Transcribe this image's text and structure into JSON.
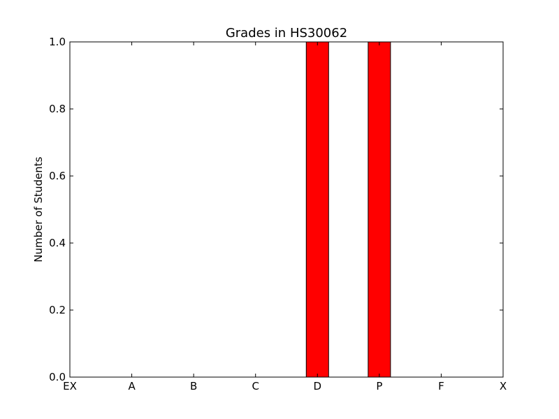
{
  "chart_data": {
    "type": "bar",
    "title": "Grades in HS30062",
    "xlabel": "",
    "ylabel": "Number of Students",
    "categories": [
      "EX",
      "A",
      "B",
      "C",
      "D",
      "P",
      "F",
      "X"
    ],
    "values": [
      0,
      0,
      0,
      0,
      1,
      1,
      0,
      0
    ],
    "ylim": [
      0,
      1.0
    ],
    "yticks": [
      0.0,
      0.2,
      0.4,
      0.6,
      0.8,
      1.0
    ],
    "ytick_labels": [
      "0.0",
      "0.2",
      "0.4",
      "0.6",
      "0.8",
      "1.0"
    ],
    "bar_color": "#ff0000",
    "bar_edge_color": "#000000",
    "grid": false,
    "legend": "none"
  }
}
